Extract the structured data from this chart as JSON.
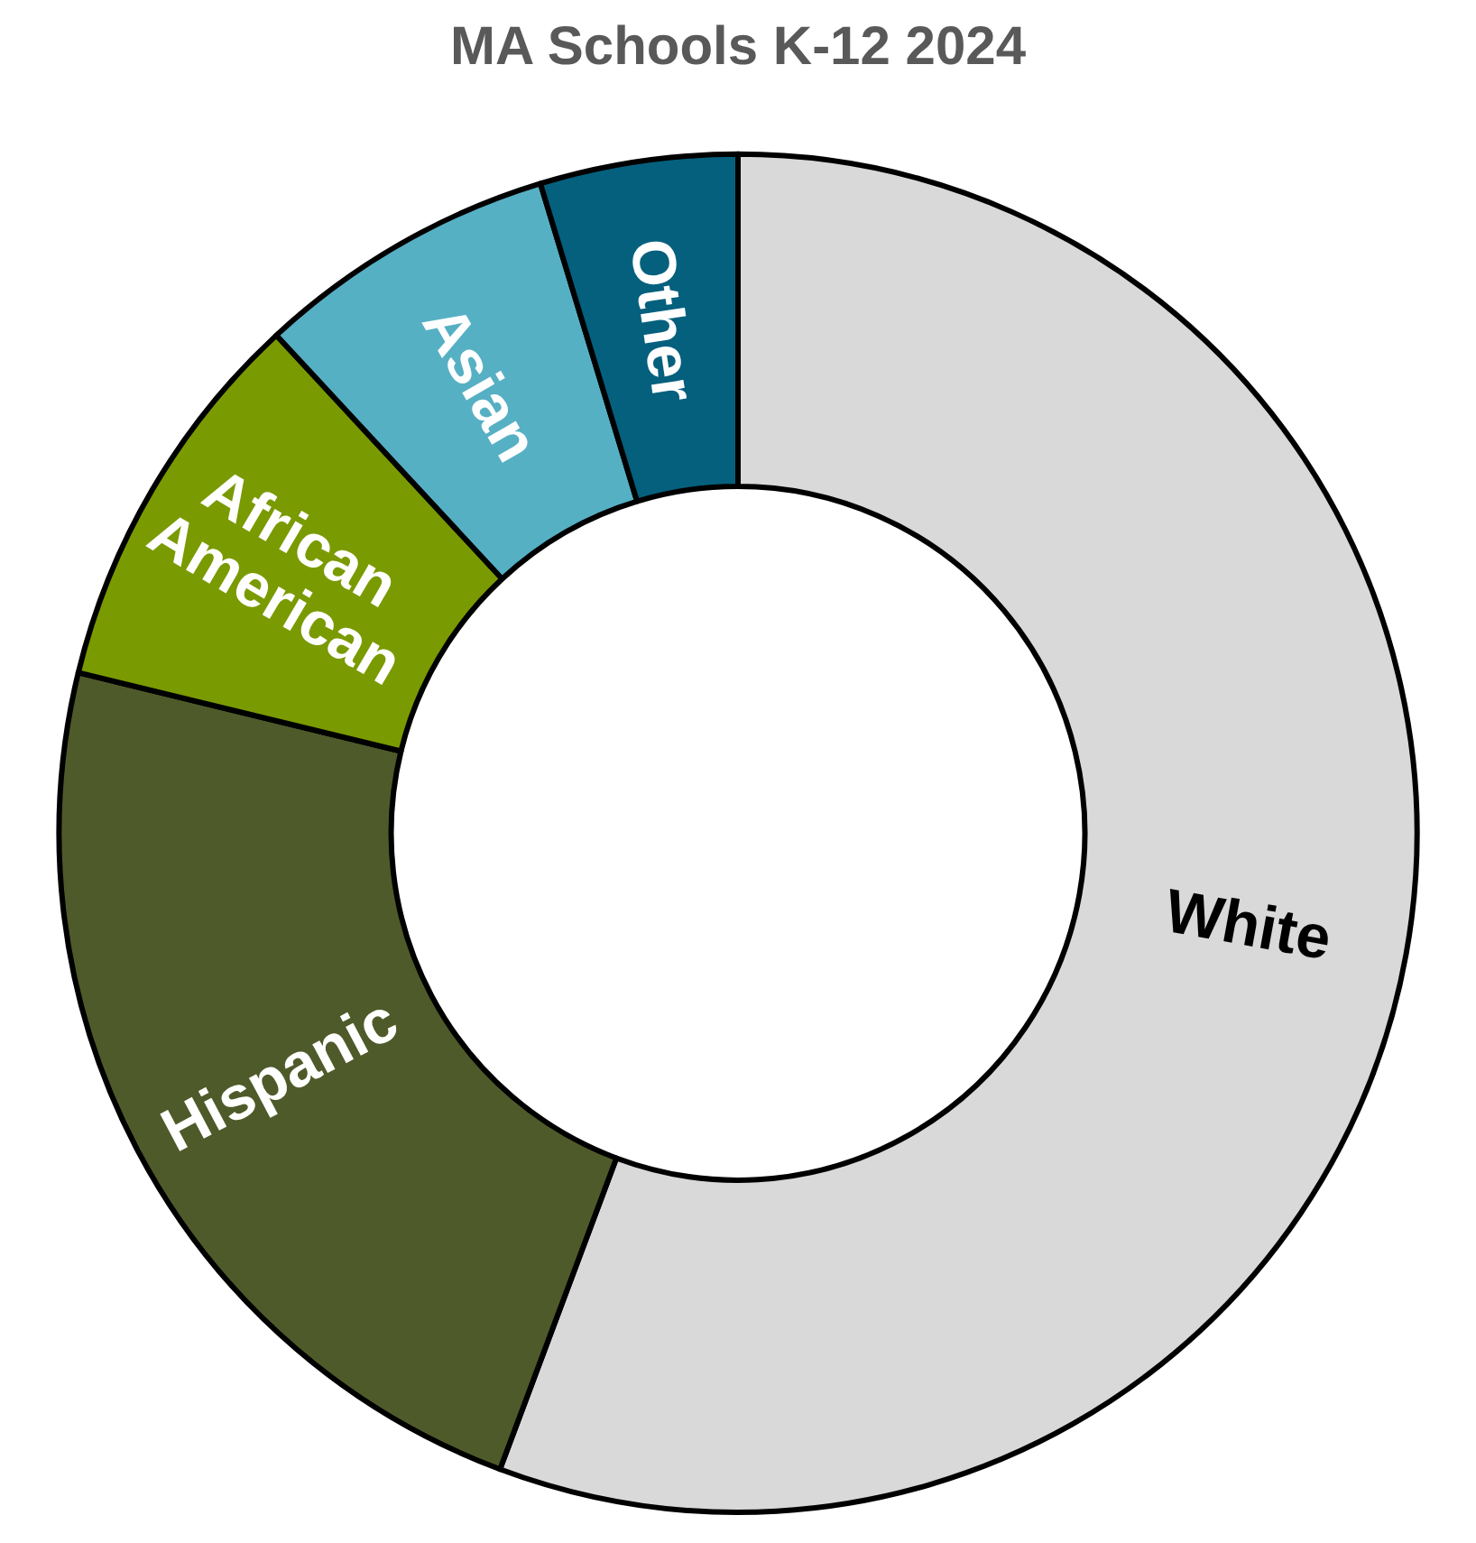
{
  "chart_data": {
    "type": "donut",
    "title": "MA Schools K-12 2024",
    "categories": [
      "White",
      "Hispanic",
      "African American",
      "Asian",
      "Other"
    ],
    "values": [
      55.7,
      23.1,
      9.3,
      7.2,
      4.7
    ],
    "colors": [
      "#d9d9d9",
      "#4f5a2a",
      "#7a9a01",
      "#56b0c4",
      "#05607e"
    ],
    "legend": false
  }
}
